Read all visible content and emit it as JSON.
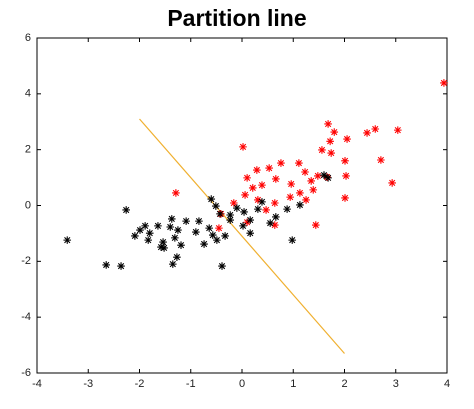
{
  "chart_data": {
    "type": "scatter",
    "title": "Partition line",
    "xlim": [
      -4,
      4
    ],
    "ylim": [
      -6,
      6
    ],
    "xticks": [
      -4,
      -3,
      -2,
      -1,
      0,
      1,
      2,
      3,
      4
    ],
    "yticks": [
      -6,
      -4,
      -2,
      0,
      2,
      4,
      6
    ],
    "marker": "asterisk",
    "series": [
      {
        "color": "#ff0000",
        "x": [
          3.94,
          -1.29,
          0.02,
          1.68,
          1.8,
          1.72,
          2.05,
          2.6,
          2.44,
          3.04,
          2.71,
          1.56,
          1.74,
          2.93,
          2.01,
          2.03,
          2.01,
          1.44,
          1.11,
          0.76,
          0.53,
          0.29,
          0.1,
          0.39,
          0.66,
          0.96,
          1.23,
          1.48,
          1.35,
          1.13,
          0.94,
          1.25,
          0.64,
          0.47,
          0.31,
          0.06,
          -0.16,
          -0.41,
          -0.45,
          0.64,
          0.1,
          1.66,
          0.21,
          1.39
        ],
        "values": [
          4.39,
          0.45,
          2.1,
          2.92,
          2.63,
          2.3,
          2.38,
          2.74,
          2.6,
          2.7,
          1.63,
          1.99,
          1.88,
          0.81,
          1.6,
          1.06,
          0.27,
          -0.7,
          1.52,
          1.52,
          1.34,
          1.27,
          0.99,
          0.73,
          0.95,
          0.77,
          1.2,
          1.06,
          0.88,
          0.45,
          0.3,
          0.2,
          0.09,
          -0.16,
          0.2,
          0.38,
          0.09,
          -0.3,
          -0.81,
          -0.7,
          -0.6,
          1.02,
          0.63,
          0.56
        ]
      },
      {
        "color": "#000000",
        "x": [
          -3.41,
          -2.65,
          -2.36,
          -2.26,
          -2.09,
          -1.99,
          -1.89,
          -1.8,
          -1.83,
          -1.64,
          -1.54,
          -1.58,
          -1.52,
          -1.4,
          -1.37,
          -1.31,
          -1.25,
          -1.19,
          -1.27,
          -1.35,
          -1.09,
          -0.9,
          -0.84,
          -0.74,
          -0.64,
          -0.57,
          -0.49,
          -0.39,
          -0.6,
          -0.51,
          -0.43,
          -0.33,
          -0.23,
          -0.1,
          0.04,
          0.16,
          0.02,
          0.16,
          0.31,
          0.39,
          0.55,
          0.66,
          0.88,
          0.98,
          1.13,
          1.6,
          1.68,
          -0.23
        ],
        "values": [
          -1.24,
          -2.13,
          -2.17,
          -0.16,
          -1.09,
          -0.88,
          -0.73,
          -0.99,
          -1.24,
          -0.73,
          -1.31,
          -1.49,
          -1.52,
          -0.77,
          -0.48,
          -1.16,
          -0.88,
          -1.42,
          -1.85,
          -2.1,
          -0.56,
          -0.95,
          -0.56,
          -1.38,
          -0.81,
          -1.06,
          -1.24,
          -2.17,
          0.23,
          -0.02,
          -0.3,
          -1.09,
          -0.52,
          -0.09,
          -0.23,
          -0.52,
          -0.73,
          -0.99,
          -0.13,
          0.13,
          -0.63,
          -0.41,
          -0.13,
          -1.24,
          0.02,
          1.09,
          0.99,
          -0.34
        ]
      }
    ],
    "lines": [
      {
        "color": "#f0b030",
        "x": [
          -2,
          2
        ],
        "values": [
          3.1,
          -5.3
        ]
      }
    ]
  }
}
